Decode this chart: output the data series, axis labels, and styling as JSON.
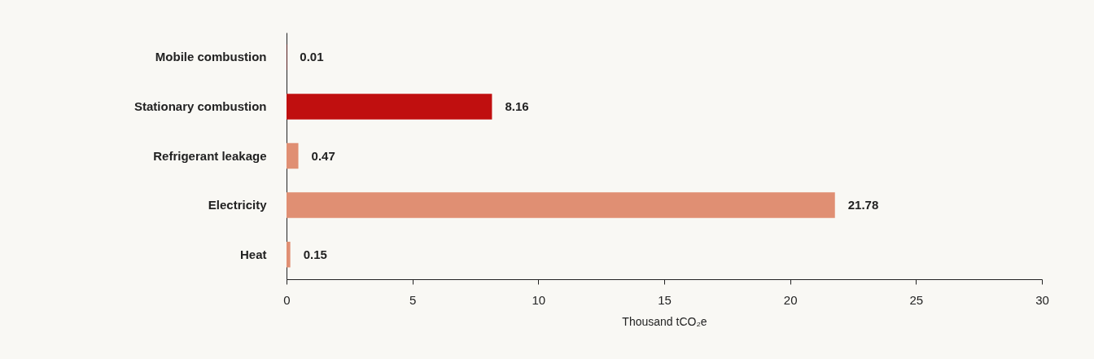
{
  "chart_data": {
    "type": "bar",
    "orientation": "horizontal",
    "categories": [
      "Mobile combustion",
      "Stationary combustion",
      "Refrigerant leakage",
      "Electricity",
      "Heat"
    ],
    "values": [
      0.01,
      8.16,
      0.47,
      21.78,
      0.15
    ],
    "colors": [
      "#c00f0f",
      "#c00f0f",
      "#e08f73",
      "#e08f73",
      "#e08f73"
    ],
    "xlim": [
      0,
      30
    ],
    "xticks": [
      0,
      5,
      10,
      15,
      20,
      25,
      30
    ],
    "xlabel": "Thousand tCO₂e",
    "data_labels": true,
    "grid": false
  }
}
